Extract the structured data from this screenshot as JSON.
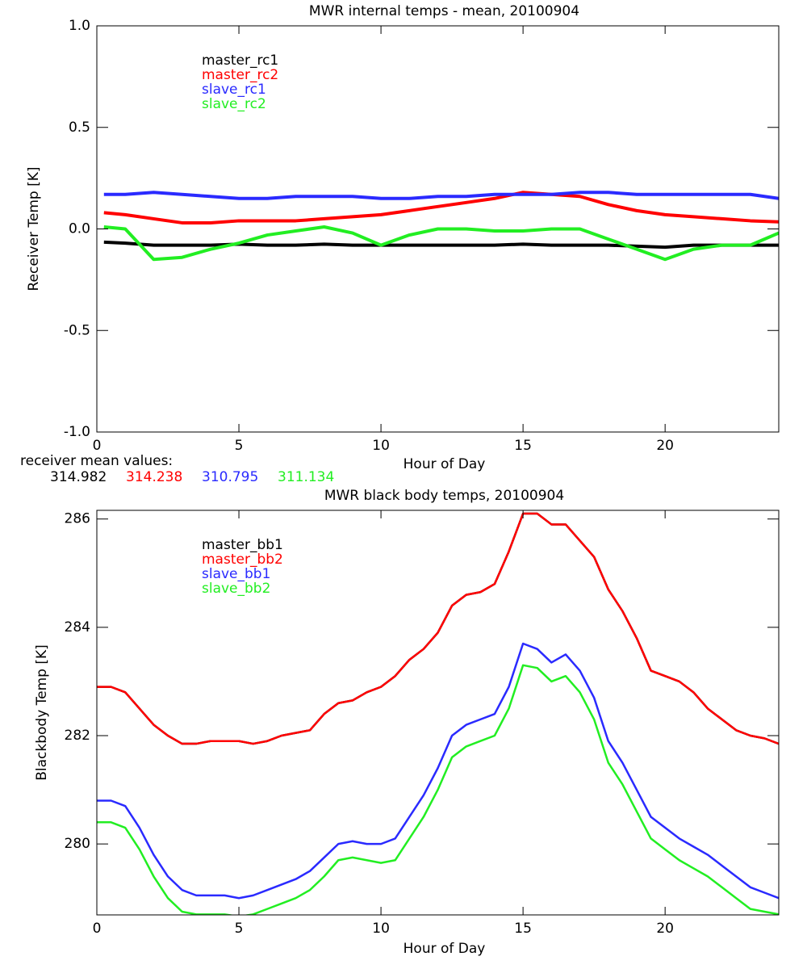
{
  "chart_data": [
    {
      "type": "line",
      "title": "MWR internal temps - mean, 20100904",
      "x_label": "Hour of Day",
      "y_label": "Receiver Temp [K]",
      "x": [
        0.25,
        1,
        2,
        3,
        4,
        5,
        6,
        7,
        8,
        9,
        10,
        11,
        12,
        13,
        14,
        15,
        16,
        17,
        18,
        19,
        20,
        21,
        22,
        23,
        24
      ],
      "series": [
        {
          "name": "master_rc1",
          "color": "#000000",
          "values": [
            -0.065,
            -0.07,
            -0.08,
            -0.08,
            -0.08,
            -0.075,
            -0.08,
            -0.08,
            -0.075,
            -0.08,
            -0.08,
            -0.08,
            -0.08,
            -0.08,
            -0.08,
            -0.075,
            -0.08,
            -0.08,
            -0.08,
            -0.085,
            -0.09,
            -0.08,
            -0.08,
            -0.08,
            -0.08
          ]
        },
        {
          "name": "master_rc2",
          "color": "#ff0000",
          "values": [
            0.08,
            0.07,
            0.05,
            0.03,
            0.03,
            0.04,
            0.04,
            0.04,
            0.05,
            0.06,
            0.07,
            0.09,
            0.11,
            0.13,
            0.15,
            0.18,
            0.17,
            0.16,
            0.12,
            0.09,
            0.07,
            0.06,
            0.05,
            0.04,
            0.035
          ]
        },
        {
          "name": "slave_rc1",
          "color": "#2a2aff",
          "values": [
            0.17,
            0.17,
            0.18,
            0.17,
            0.16,
            0.15,
            0.15,
            0.16,
            0.16,
            0.16,
            0.15,
            0.15,
            0.16,
            0.16,
            0.17,
            0.17,
            0.17,
            0.18,
            0.18,
            0.17,
            0.17,
            0.17,
            0.17,
            0.17,
            0.15
          ]
        },
        {
          "name": "slave_rc2",
          "color": "#22ee22",
          "values": [
            0.01,
            0.0,
            -0.15,
            -0.14,
            -0.1,
            -0.07,
            -0.03,
            -0.01,
            0.01,
            -0.02,
            -0.08,
            -0.03,
            0.0,
            0.0,
            -0.01,
            -0.01,
            0.0,
            0.0,
            -0.05,
            -0.1,
            -0.15,
            -0.1,
            -0.08,
            -0.08,
            -0.02
          ]
        }
      ],
      "xlim": [
        0,
        24
      ],
      "xticks": [
        0,
        5,
        10,
        15,
        20
      ],
      "ylim": [
        -1,
        1
      ],
      "yticks": [
        {
          "value": -1,
          "label": "-1.0"
        },
        -0.5,
        {
          "value": 0,
          "label": "0.0"
        },
        0.5,
        {
          "value": 1,
          "label": "1.0"
        }
      ],
      "mean_values": {
        "label": "receiver mean values:",
        "values": [
          314.982,
          314.238,
          310.795,
          311.134
        ]
      }
    },
    {
      "type": "line",
      "title": "MWR black body temps, 20100904",
      "x_label": "Hour of Day",
      "y_label": "Blackbody Temp [K]",
      "x": [
        0,
        0.5,
        1,
        1.5,
        2,
        2.5,
        3,
        3.5,
        4,
        4.5,
        5,
        5.5,
        6,
        6.5,
        7,
        7.5,
        8,
        8.5,
        9,
        9.5,
        10,
        10.5,
        11,
        11.5,
        12,
        12.5,
        13,
        13.5,
        14,
        14.5,
        15,
        15.5,
        16,
        16.5,
        17,
        17.5,
        18,
        18.5,
        19,
        19.5,
        20,
        20.5,
        21,
        21.5,
        22,
        22.5,
        23,
        23.5,
        24
      ],
      "series": [
        {
          "name": "master_bb1",
          "color": "#000000",
          "values": [
            282.9,
            282.9,
            282.8,
            282.5,
            282.2,
            282.0,
            281.85,
            281.85,
            281.9,
            281.9,
            281.9,
            281.85,
            281.9,
            282.0,
            282.05,
            282.1,
            282.4,
            282.6,
            282.65,
            282.8,
            282.9,
            283.1,
            283.4,
            283.6,
            283.9,
            284.4,
            284.6,
            284.65,
            284.8,
            285.4,
            286.1,
            286.1,
            285.9,
            285.9,
            285.6,
            285.3,
            284.7,
            284.3,
            283.8,
            283.2,
            283.1,
            283.0,
            282.8,
            282.5,
            282.3,
            282.1,
            282.0,
            281.95,
            281.85
          ]
        },
        {
          "name": "master_bb2",
          "color": "#ff0000",
          "values": [
            282.9,
            282.9,
            282.8,
            282.5,
            282.2,
            282.0,
            281.85,
            281.85,
            281.9,
            281.9,
            281.9,
            281.85,
            281.9,
            282.0,
            282.05,
            282.1,
            282.4,
            282.6,
            282.65,
            282.8,
            282.9,
            283.1,
            283.4,
            283.6,
            283.9,
            284.4,
            284.6,
            284.65,
            284.8,
            285.4,
            286.1,
            286.1,
            285.9,
            285.9,
            285.6,
            285.3,
            284.7,
            284.3,
            283.8,
            283.2,
            283.1,
            283.0,
            282.8,
            282.5,
            282.3,
            282.1,
            282.0,
            281.95,
            281.85
          ]
        },
        {
          "name": "slave_bb1",
          "color": "#2a2aff",
          "values": [
            280.8,
            280.8,
            280.7,
            280.3,
            279.8,
            279.4,
            279.15,
            279.05,
            279.05,
            279.05,
            279.0,
            279.05,
            279.15,
            279.25,
            279.35,
            279.5,
            279.75,
            280.0,
            280.05,
            280.0,
            280.0,
            280.1,
            280.5,
            280.9,
            281.4,
            282.0,
            282.2,
            282.3,
            282.4,
            282.9,
            283.7,
            283.6,
            283.35,
            283.5,
            283.2,
            282.7,
            281.9,
            281.5,
            281.0,
            280.5,
            280.3,
            280.1,
            279.95,
            279.8,
            279.6,
            279.4,
            279.2,
            279.1,
            279.0
          ]
        },
        {
          "name": "slave_bb2",
          "color": "#22ee22",
          "values": [
            280.4,
            280.4,
            280.3,
            279.9,
            279.4,
            279.0,
            278.75,
            278.7,
            278.7,
            278.7,
            278.66,
            278.7,
            278.8,
            278.9,
            279.0,
            279.15,
            279.4,
            279.7,
            279.75,
            279.7,
            279.65,
            279.7,
            280.1,
            280.5,
            281.0,
            281.6,
            281.8,
            281.9,
            282.0,
            282.5,
            283.3,
            283.25,
            283.0,
            283.1,
            282.8,
            282.3,
            281.5,
            281.1,
            280.6,
            280.1,
            279.9,
            279.7,
            279.55,
            279.4,
            279.2,
            279.0,
            278.8,
            278.75,
            278.7
          ]
        }
      ],
      "xlim": [
        0,
        24
      ],
      "xticks": [
        0,
        5,
        10,
        15,
        20
      ],
      "ylim": [
        278.69,
        286.16
      ],
      "yticks": [
        280,
        282,
        284,
        286
      ]
    }
  ]
}
